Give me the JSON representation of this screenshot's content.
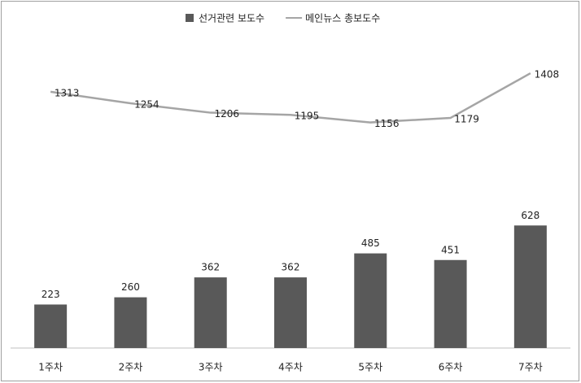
{
  "chart_data": {
    "type": "bar-line",
    "categories": [
      "1주차",
      "2주차",
      "3주차",
      "4주차",
      "5주차",
      "6주차",
      "7주차"
    ],
    "series": [
      {
        "name": "선거관련 보도수",
        "type": "bar",
        "color": "#595959",
        "values": [
          223,
          260,
          362,
          362,
          485,
          451,
          628
        ]
      },
      {
        "name": "메인뉴스 총보도수",
        "type": "line",
        "color": "#a5a5a5",
        "values": [
          1313,
          1254,
          1206,
          1195,
          1156,
          1179,
          1408
        ]
      }
    ],
    "ylim": [
      0,
      1600
    ],
    "legend": "top"
  }
}
